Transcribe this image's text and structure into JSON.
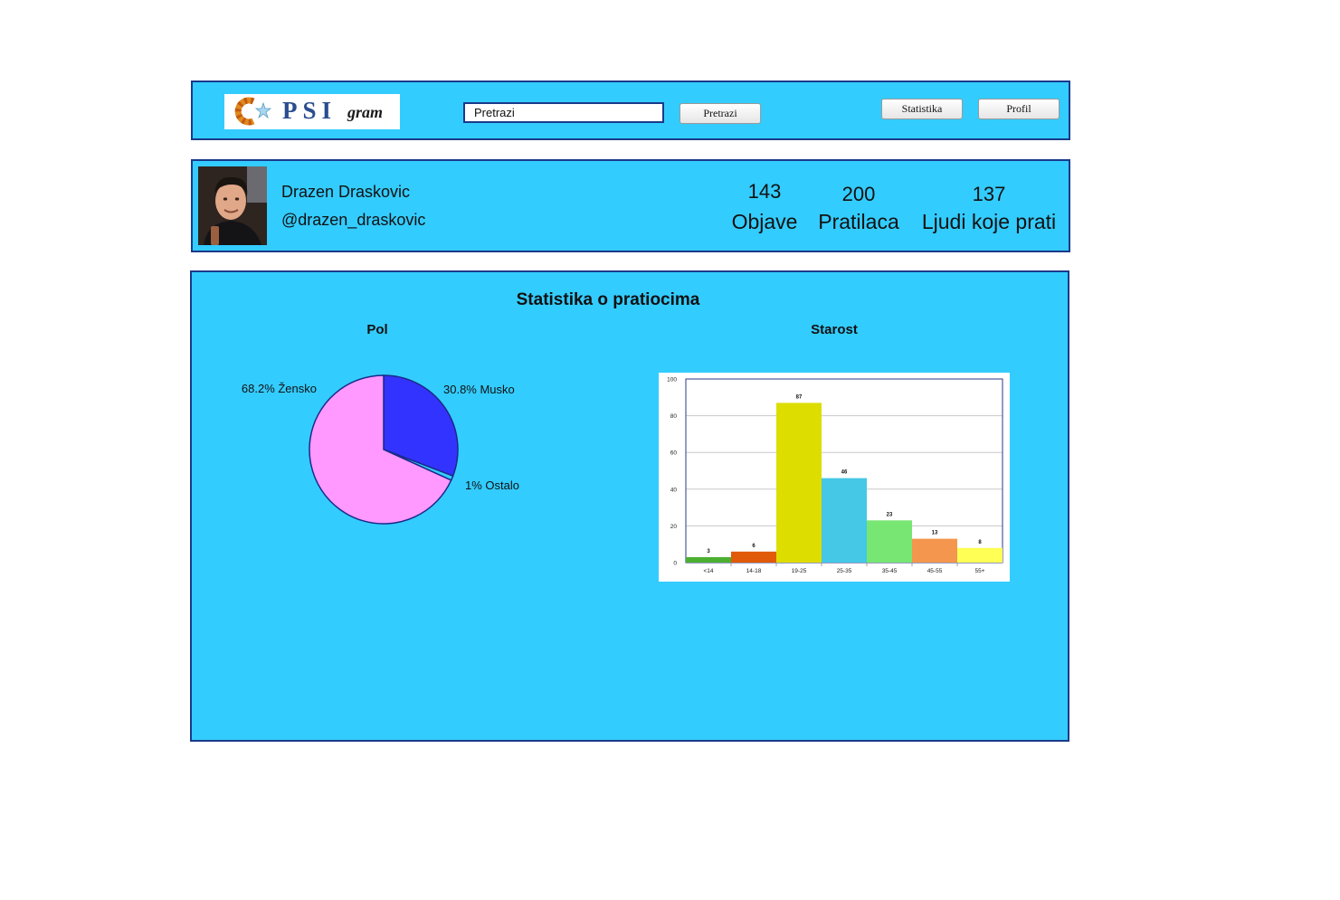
{
  "header": {
    "logo_text": "PSI",
    "logo_sub": "gram",
    "search_placeholder": "Pretrazi",
    "search_value": "Pretrazi",
    "search_button": "Pretrazi",
    "statistika_button": "Statistika",
    "profil_button": "Profil"
  },
  "profile": {
    "name": "Drazen Draskovic",
    "handle": "@drazen_draskovic",
    "stats": [
      {
        "value": "143",
        "label": "Objave"
      },
      {
        "value": "200",
        "label": "Pratilaca"
      },
      {
        "value": "137",
        "label": "Ljudi koje prati"
      }
    ]
  },
  "stats": {
    "title": "Statistika o pratiocima",
    "pie_title": "Pol",
    "bar_title": "Starost"
  },
  "colors": {
    "panel_bg": "#33ccff",
    "panel_border": "#1a3a8a"
  },
  "chart_data": [
    {
      "type": "pie",
      "title": "Pol",
      "slices": [
        {
          "label": "30.8% Musko",
          "value": 30.8,
          "color": "#3333ff"
        },
        {
          "label": "1% Ostalo",
          "value": 1,
          "color": "#33ccff"
        },
        {
          "label": "68.2% Žensko",
          "value": 68.2,
          "color": "#ff99ff"
        }
      ]
    },
    {
      "type": "bar",
      "title": "Starost",
      "categories": [
        "<14",
        "14-18",
        "19-25",
        "25-35",
        "35-45",
        "45-55",
        "55+"
      ],
      "values": [
        3,
        6,
        87,
        46,
        23,
        13,
        8
      ],
      "colors": [
        "#4caf32",
        "#e05a0a",
        "#dddd00",
        "#44c8e6",
        "#77e673",
        "#f5964e",
        "#ffff55"
      ],
      "ylim": [
        0,
        100
      ],
      "yticks": [
        0,
        20,
        40,
        60,
        80,
        100
      ],
      "grid": true
    }
  ]
}
